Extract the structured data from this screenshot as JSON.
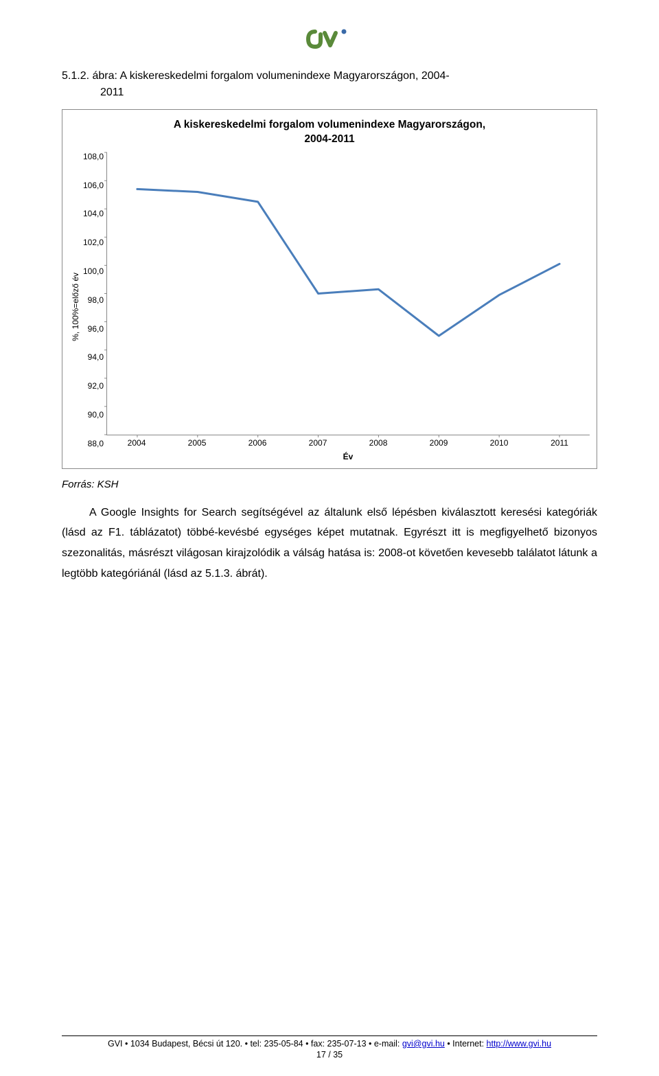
{
  "caption_line1": "5.1.2. ábra: A kiskereskedelmi forgalom volumenindexe Magyarországon, 2004-",
  "caption_line2": "2011",
  "source_label": "Forrás: KSH",
  "paragraph": "A Google Insights for Search segítségével az általunk első lépésben kiválasztott keresési kategóriák (lásd az F1. táblázatot) többé-kevésbé egységes képet mutatnak. Egyrészt itt is megfigyelhető bizonyos szezonalitás, másrészt világosan kirajzolódik a válság hatása is: 2008-ot követően kevesebb találatot látunk a legtöbb kategóriánál (lásd az 5.1.3. ábrát).",
  "footer_text_1": "GVI • 1034 Budapest, Bécsi út 120. • tel: 235-05-84 • fax: 235-07-13 • e-mail: ",
  "footer_email": "gvi@gvi.hu",
  "footer_text_2": " • Internet: ",
  "footer_url": "http://www.gvi.hu",
  "page_number": "17 / 35",
  "chart": {
    "type": "line",
    "title_line1": "A kiskereskedelmi forgalom volumenindexe Magyarországon,",
    "title_line2": "2004-2011",
    "x_label": "Év",
    "y_label": "%, 100%=előző év",
    "x_categories": [
      "2004",
      "2005",
      "2006",
      "2007",
      "2008",
      "2009",
      "2010",
      "2011"
    ],
    "y_values": [
      105.4,
      105.2,
      104.5,
      98.0,
      98.3,
      95.0,
      97.9,
      100.1
    ],
    "y_ticks": [
      "108,0",
      "106,0",
      "104,0",
      "102,0",
      "100,0",
      "98,0",
      "96,0",
      "94,0",
      "92,0",
      "90,0",
      "88,0"
    ],
    "ylim_min": 88.0,
    "ylim_max": 108.0,
    "line_color": "#4a7ebb",
    "line_width": 3,
    "marker_size": 0,
    "background_color": "#ffffff",
    "grid": false,
    "title_fontsize": 15.5,
    "tick_fontsize": 12
  },
  "logo": {
    "fill1": "#5a8a3a",
    "fill2": "#5a8a3a",
    "dot": "#3a6aa8"
  }
}
